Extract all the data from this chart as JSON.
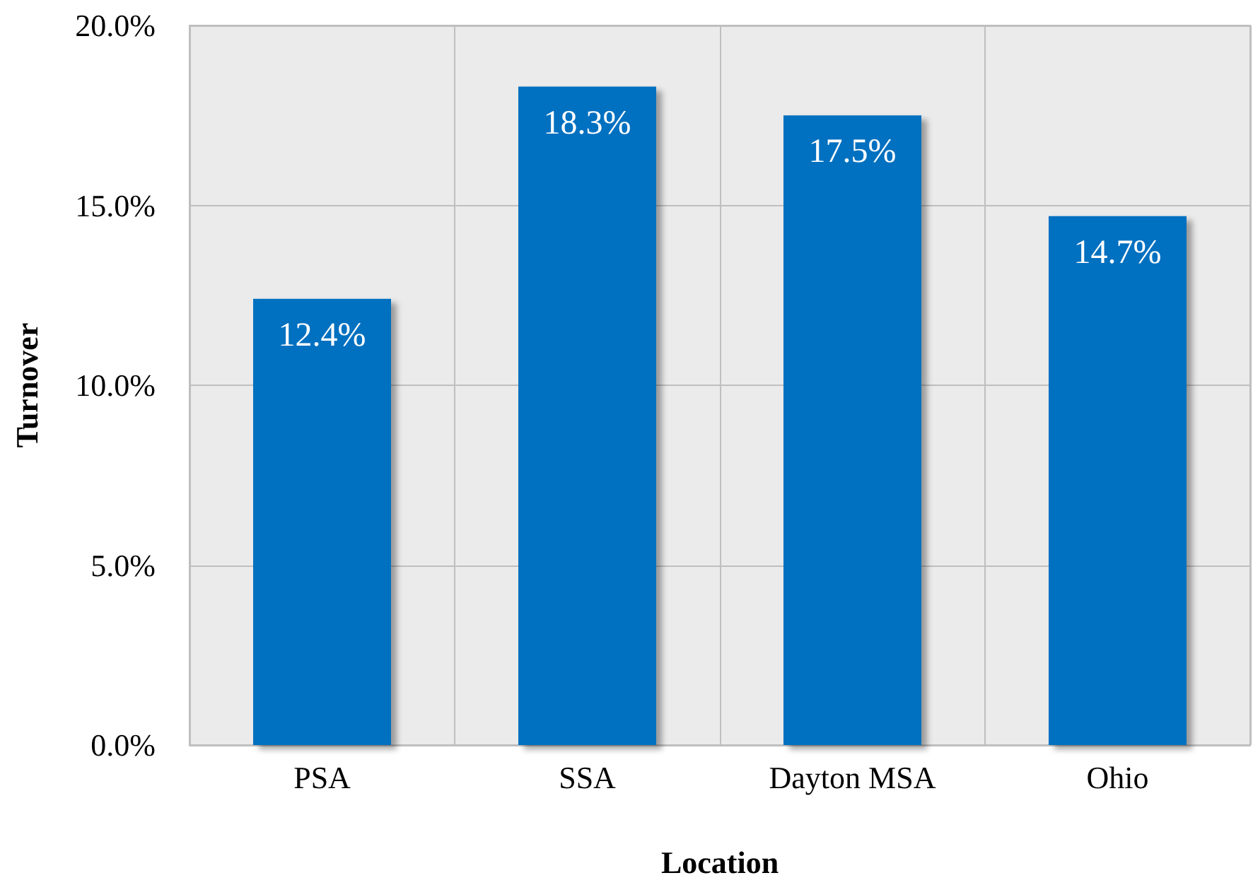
{
  "chart_data": {
    "type": "bar",
    "xlabel": "Location",
    "ylabel": "Turnover",
    "categories": [
      "PSA",
      "SSA",
      "Dayton MSA",
      "Ohio"
    ],
    "values": [
      12.4,
      18.3,
      17.5,
      14.7
    ],
    "value_labels": [
      "12.4%",
      "18.3%",
      "17.5%",
      "14.7%"
    ],
    "color": "#0070c0",
    "ylim": [
      0,
      20
    ],
    "yticks": [
      {
        "value": 0,
        "label": "0.0%"
      },
      {
        "value": 5,
        "label": "5.0%"
      },
      {
        "value": 10,
        "label": "10.0%"
      },
      {
        "value": 15,
        "label": "15.0%"
      },
      {
        "value": 20,
        "label": "20.0%"
      }
    ],
    "grid": true
  }
}
